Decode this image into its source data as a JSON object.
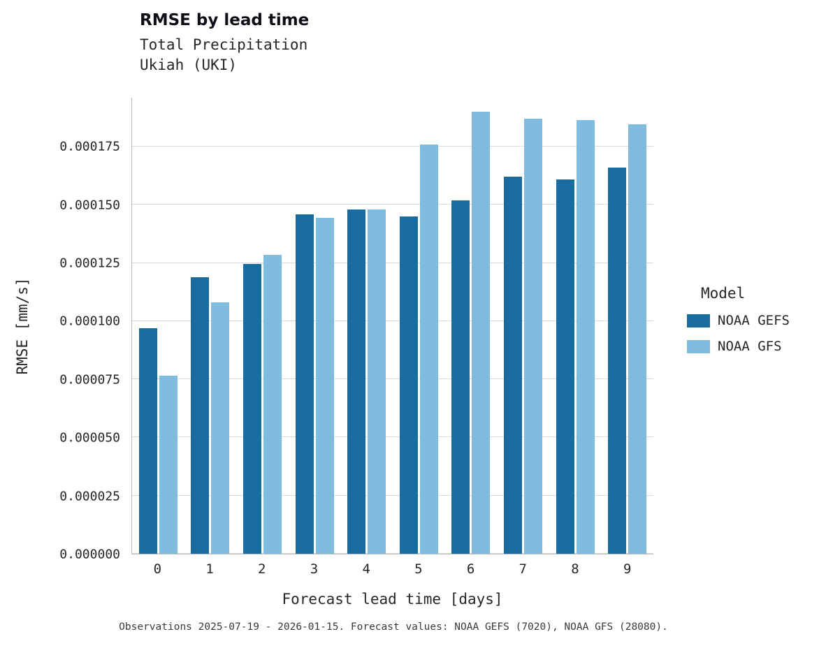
{
  "header": {
    "title": "RMSE by lead time",
    "subtitle_line1": "Total Precipitation",
    "subtitle_line2": "Ukiah (UKI)"
  },
  "caption": "Observations 2025-07-19 - 2026-01-15. Forecast values: NOAA GEFS (7020), NOAA GFS (28080).",
  "legend": {
    "title": "Model",
    "entries": [
      {
        "label": "NOAA GEFS",
        "color": "#196d9e"
      },
      {
        "label": "NOAA GFS",
        "color": "#7fbcdf"
      }
    ]
  },
  "colors": {
    "gefs": "#196d9e",
    "gfs": "#7fbcdf",
    "gridline": "#d9d9d9",
    "spine": "#b9b9b9"
  },
  "chart_data": {
    "type": "bar",
    "title": "RMSE by lead time",
    "subtitle": [
      "Total Precipitation",
      "Ukiah (UKI)"
    ],
    "xlabel": "Forecast lead time [days]",
    "ylabel": "RMSE [mm/s]",
    "categories": [
      "0",
      "1",
      "2",
      "3",
      "4",
      "5",
      "6",
      "7",
      "8",
      "9"
    ],
    "series": [
      {
        "name": "NOAA GEFS",
        "color": "#196d9e",
        "values": [
          9.7e-05,
          0.000119,
          0.0001245,
          0.000146,
          0.000148,
          0.000145,
          0.000152,
          0.000162,
          0.000161,
          0.000166
        ]
      },
      {
        "name": "NOAA GFS",
        "color": "#7fbcdf",
        "values": [
          7.65e-05,
          0.000108,
          0.0001285,
          0.0001445,
          0.000148,
          0.000176,
          0.00019,
          0.000187,
          0.0001865,
          0.0001845
        ]
      }
    ],
    "ylim": [
      0,
      0.000196
    ],
    "yticks": [
      0,
      2.5e-05,
      5e-05,
      7.5e-05,
      0.0001,
      0.000125,
      0.00015,
      0.000175
    ],
    "ytick_labels": [
      "0.000000",
      "0.000025",
      "0.000050",
      "0.000075",
      "0.000100",
      "0.000125",
      "0.000150",
      "0.000175"
    ],
    "grid": true,
    "legend_position": "center-right",
    "legend_title": "Model"
  }
}
